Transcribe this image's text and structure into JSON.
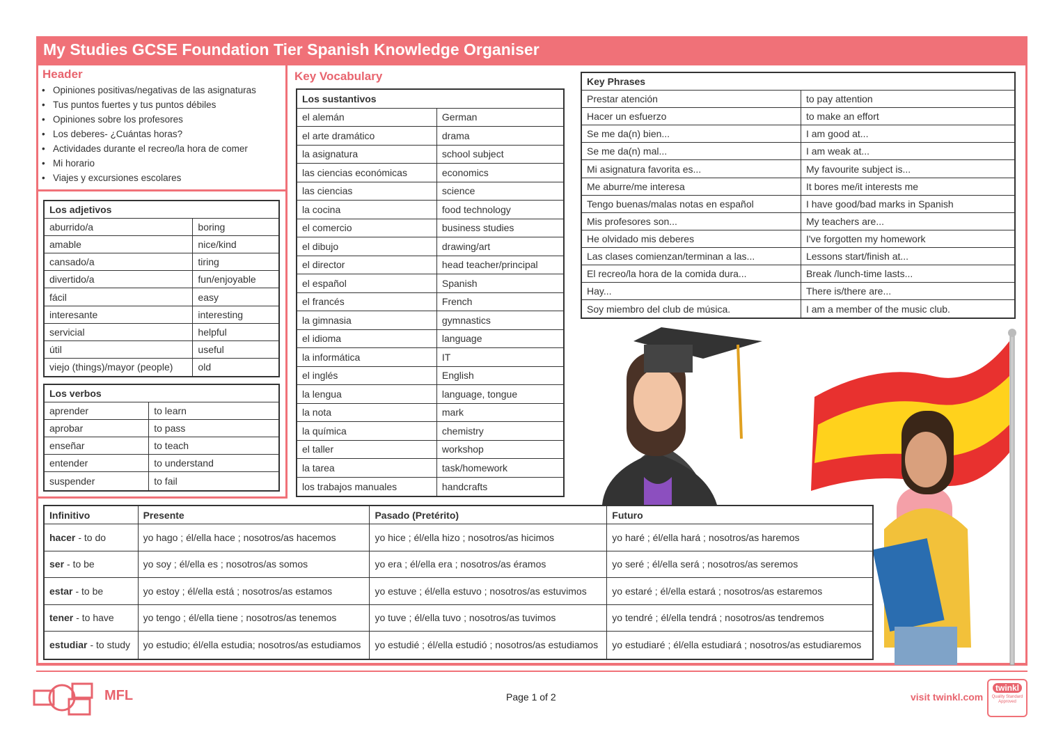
{
  "title": "My Studies GCSE Foundation Tier Spanish Knowledge Organiser",
  "header": {
    "heading": "Header",
    "items": [
      "Opiniones positivas/negativas de las asignaturas",
      "Tus puntos fuertes y tus puntos débiles",
      "Opiniones sobre los profesores",
      "Los deberes- ¿Cuántas horas?",
      "Actividades durante el recreo/la hora de comer",
      "Mi horario",
      "Viajes y excursiones escolares"
    ]
  },
  "adjectives": {
    "heading": "Los adjetivos",
    "rows": [
      [
        "aburrido/a",
        "boring"
      ],
      [
        "amable",
        "nice/kind"
      ],
      [
        "cansado/a",
        "tiring"
      ],
      [
        "divertido/a",
        "fun/enjoyable"
      ],
      [
        "fácil",
        "easy"
      ],
      [
        "interesante",
        "interesting"
      ],
      [
        "servicial",
        "helpful"
      ],
      [
        "útil",
        "useful"
      ],
      [
        "viejo (things)/mayor (people)",
        "old"
      ]
    ]
  },
  "verbs": {
    "heading": "Los verbos",
    "rows": [
      [
        "aprender",
        "to learn"
      ],
      [
        "aprobar",
        "to pass"
      ],
      [
        "enseñar",
        "to teach"
      ],
      [
        "entender",
        "to understand"
      ],
      [
        "suspender",
        "to fail"
      ]
    ]
  },
  "vocabulary": {
    "heading": "Key Vocabulary",
    "table": {
      "heading": "Los sustantivos",
      "rows": [
        [
          "el alemán",
          "German"
        ],
        [
          "el arte dramático",
          "drama"
        ],
        [
          "la asignatura",
          "school subject"
        ],
        [
          "las ciencias económicas",
          "economics"
        ],
        [
          "las ciencias",
          "science"
        ],
        [
          "la cocina",
          "food technology"
        ],
        [
          "el comercio",
          "business studies"
        ],
        [
          "el dibujo",
          "drawing/art"
        ],
        [
          "el director",
          "head teacher/principal"
        ],
        [
          "el español",
          "Spanish"
        ],
        [
          "el francés",
          "French"
        ],
        [
          "la gimnasia",
          "gymnastics"
        ],
        [
          "el idioma",
          "language"
        ],
        [
          "la informática",
          "IT"
        ],
        [
          "el inglés",
          "English"
        ],
        [
          "la lengua",
          "language, tongue"
        ],
        [
          "la nota",
          "mark"
        ],
        [
          "la química",
          "chemistry"
        ],
        [
          "el taller",
          "workshop"
        ],
        [
          "la tarea",
          "task/homework"
        ],
        [
          "los trabajos manuales",
          "handcrafts"
        ]
      ]
    }
  },
  "phrases": {
    "heading": "Key Phrases",
    "rows": [
      [
        "Prestar atención",
        "to pay attention"
      ],
      [
        "Hacer un esfuerzo",
        "to make an effort"
      ],
      [
        "Se me da(n) bien...",
        "I am good at..."
      ],
      [
        "Se me da(n) mal...",
        "I am weak at..."
      ],
      [
        "Mi asignatura favorita es...",
        "My favourite subject is..."
      ],
      [
        "Me aburre/me interesa",
        "It bores me/it interests me"
      ],
      [
        "Tengo buenas/malas notas en español",
        "I have good/bad marks in Spanish"
      ],
      [
        "Mis profesores son...",
        "My teachers are..."
      ],
      [
        "He olvidado mis deberes",
        "I've forgotten my homework"
      ],
      [
        "Las clases comienzan/terminan a las...",
        "Lessons start/finish at..."
      ],
      [
        "El recreo/la hora de la comida dura...",
        "Break /lunch-time lasts..."
      ],
      [
        "Hay...",
        "There is/there are..."
      ],
      [
        "Soy miembro del club de música.",
        "I am a member of the music club."
      ]
    ]
  },
  "conjugation": {
    "columns": [
      "Infinitivo",
      "Presente",
      "Pasado (Pretérito)",
      "Futuro"
    ],
    "rows": [
      {
        "verb": "hacer",
        "gloss": "- to do",
        "cells": [
          "yo hago ; él/ella hace ; nosotros/as hacemos",
          "yo hice ; él/ella hizo ; nosotros/as hicimos",
          "yo haré ; él/ella hará ; nosotros/as haremos"
        ]
      },
      {
        "verb": "ser",
        "gloss": "- to be",
        "cells": [
          "yo soy ; él/ella es ; nosotros/as somos",
          "yo era ; él/ella era ; nosotros/as éramos",
          "yo seré ; él/ella será ; nosotros/as seremos"
        ]
      },
      {
        "verb": "estar",
        "gloss": "- to be",
        "cells": [
          "yo estoy ; él/ella está ; nosotros/as estamos",
          "yo estuve ; él/ella estuvo ; nosotros/as estuvimos",
          "yo estaré ; él/ella estará ; nosotros/as estaremos"
        ]
      },
      {
        "verb": "tener",
        "gloss": "- to have",
        "cells": [
          "yo tengo ; él/ella tiene ; nosotros/as tenemos",
          "yo tuve ; él/ella tuvo ; nosotros/as tuvimos",
          "yo tendré ; él/ella tendrá ; nosotros/as tendremos"
        ]
      },
      {
        "verb": "estudiar",
        "gloss": "- to study",
        "cells": [
          "yo estudio; él/ella estudia; nosotros/as estudiamos",
          "yo estudié ; él/ella estudió ; nosotros/as estudiamos",
          "yo estudiaré ; él/ella estudiará ; nosotros/as estudiaremos"
        ]
      }
    ]
  },
  "footer": {
    "subject": "MFL",
    "page": "Page 1 of 2",
    "link": "visit twinkl.com",
    "badge": "twinkl",
    "badge_note": "Quality Standard Approved"
  }
}
